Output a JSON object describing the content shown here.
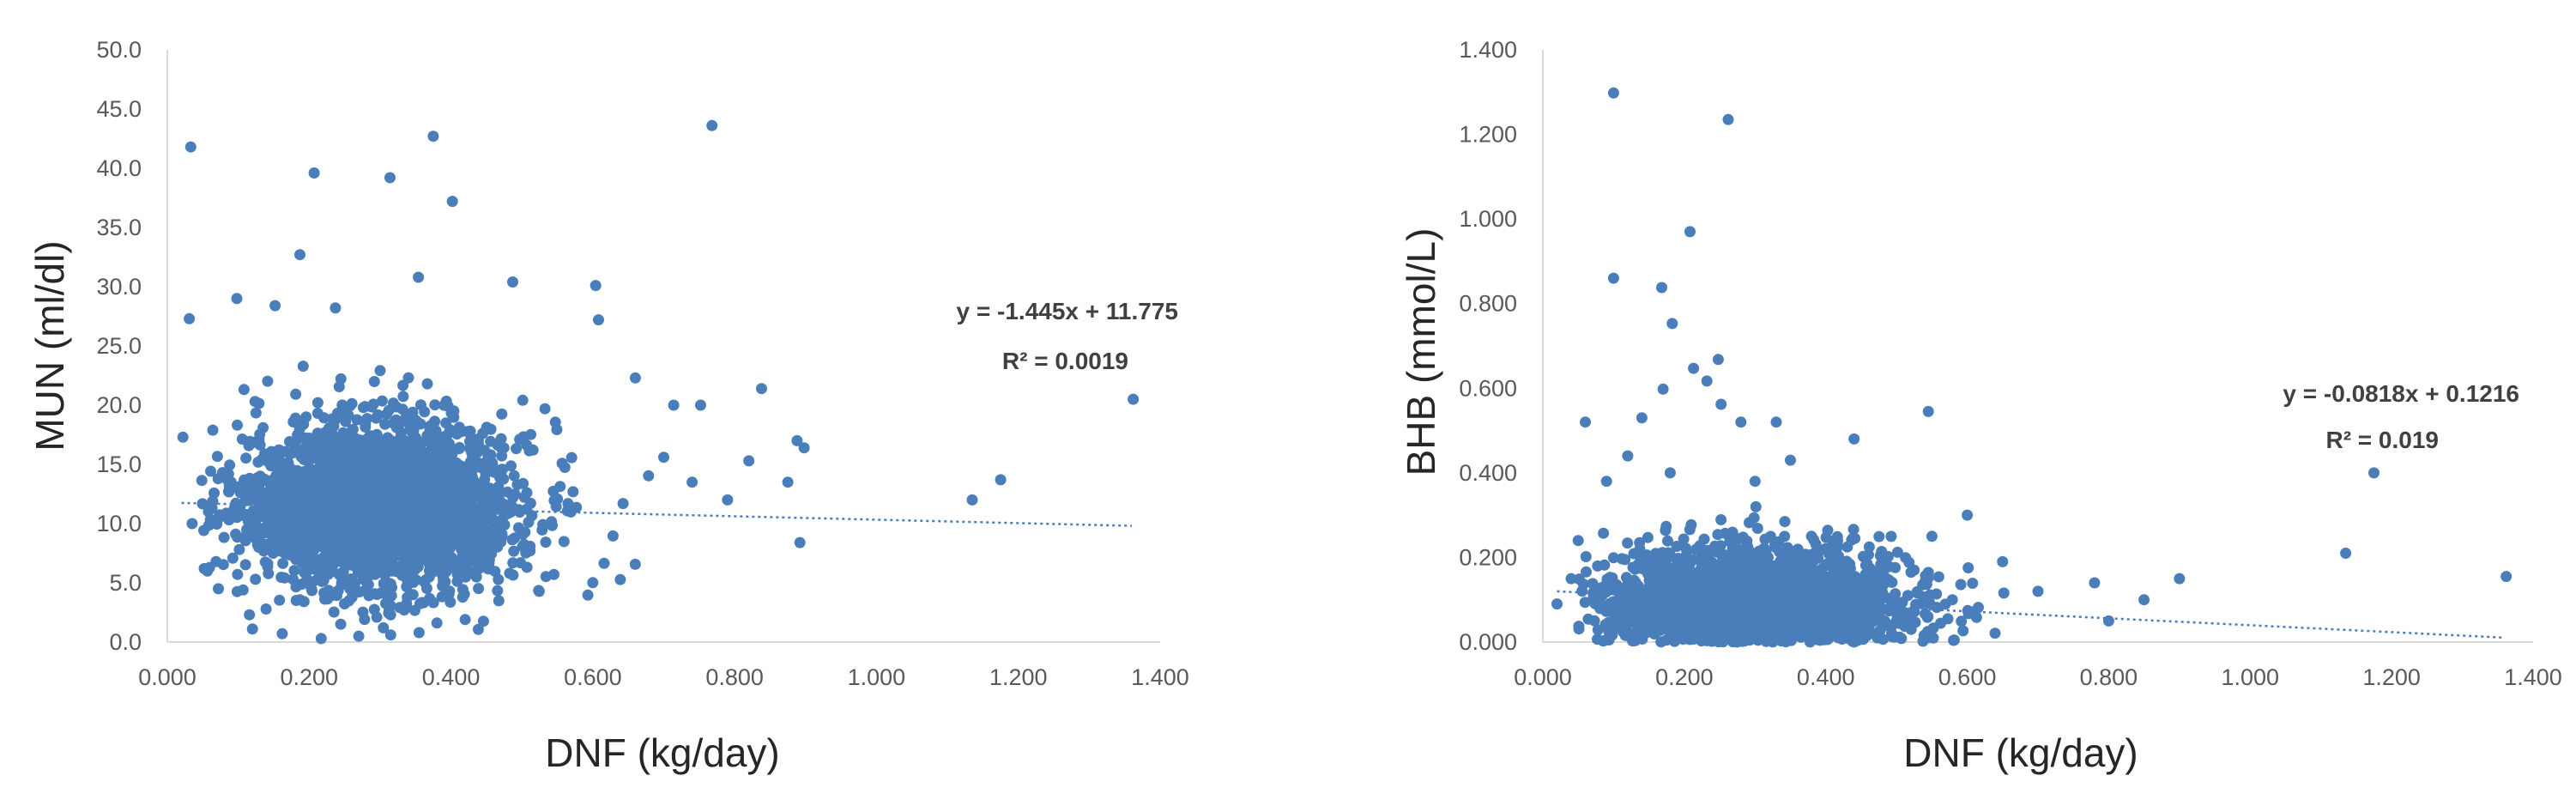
{
  "charts": [
    {
      "chart_data": {
        "type": "scatter",
        "title": "",
        "xlabel": "DNF (kg/day)",
        "ylabel": "MUN (ml/dl)",
        "xlim": [
          0.0,
          1.4
        ],
        "ylim": [
          0.0,
          50.0
        ],
        "x_ticks": [
          "0.000",
          "0.200",
          "0.400",
          "0.600",
          "0.800",
          "1.000",
          "1.200",
          "1.400"
        ],
        "y_ticks": [
          "0.0",
          "5.0",
          "10.0",
          "15.0",
          "20.0",
          "25.0",
          "30.0",
          "35.0",
          "40.0",
          "45.0",
          "50.0"
        ],
        "grid": false,
        "marker_color": "#4a7ebb",
        "trendline": {
          "type": "linear",
          "slope": -1.445,
          "intercept": 11.775,
          "x_range": [
            0.02,
            1.36
          ]
        },
        "annotations": [
          "y = -1.445x + 11.775",
          "R² = 0.0019"
        ],
        "points": [
          [
            0.033,
            41.8
          ],
          [
            0.207,
            39.6
          ],
          [
            0.314,
            39.2
          ],
          [
            0.375,
            42.7
          ],
          [
            0.402,
            37.2
          ],
          [
            0.768,
            43.6
          ],
          [
            0.187,
            32.7
          ],
          [
            0.354,
            30.8
          ],
          [
            0.487,
            30.4
          ],
          [
            0.604,
            30.1
          ],
          [
            0.031,
            27.3
          ],
          [
            0.098,
            29.0
          ],
          [
            0.152,
            28.4
          ],
          [
            0.237,
            28.2
          ],
          [
            0.608,
            27.2
          ],
          [
            0.714,
            20.0
          ],
          [
            0.752,
            20.0
          ],
          [
            0.838,
            21.4
          ],
          [
            0.888,
            17.0
          ],
          [
            0.898,
            16.4
          ],
          [
            0.875,
            13.5
          ],
          [
            0.892,
            8.4
          ],
          [
            1.135,
            12.0
          ],
          [
            1.175,
            13.7
          ],
          [
            1.362,
            20.5
          ],
          [
            0.022,
            17.3
          ],
          [
            0.035,
            10.0
          ],
          [
            0.052,
            6.2
          ],
          [
            0.072,
            4.5
          ],
          [
            0.12,
            1.1
          ],
          [
            0.162,
            0.7
          ],
          [
            0.217,
            0.3
          ],
          [
            0.27,
            0.5
          ],
          [
            0.315,
            0.6
          ],
          [
            0.355,
            0.8
          ],
          [
            0.42,
            1.9
          ],
          [
            0.66,
            22.3
          ],
          [
            0.7,
            15.6
          ],
          [
            0.74,
            13.5
          ],
          [
            0.79,
            12.0
          ],
          [
            0.82,
            15.3
          ]
        ],
        "point_cloud": {
          "x_center": 0.3,
          "x_spread": 0.1,
          "y_center": 11.5,
          "y_spread": 3.6,
          "x_range": [
            0.04,
            0.72
          ],
          "y_range": [
            0.8,
            24.0
          ]
        }
      }
    },
    {
      "chart_data": {
        "type": "scatter",
        "title": "",
        "xlabel": "DNF (kg/day)",
        "ylabel": "BHB (mmol/L)",
        "xlim": [
          0.0,
          1.4
        ],
        "ylim": [
          0.0,
          1.4
        ],
        "x_ticks": [
          "0.000",
          "0.200",
          "0.400",
          "0.600",
          "0.800",
          "1.000",
          "1.200",
          "1.400"
        ],
        "y_ticks": [
          "0.000",
          "0.200",
          "0.400",
          "0.600",
          "0.800",
          "1.000",
          "1.200",
          "1.400"
        ],
        "grid": false,
        "marker_color": "#4a7ebb",
        "trendline": {
          "type": "linear",
          "slope": -0.0818,
          "intercept": 0.1216,
          "x_range": [
            0.02,
            1.36
          ]
        },
        "annotations": [
          "y = -0.0818x + 0.1216",
          "R² = 0.019"
        ],
        "points": [
          [
            0.1,
            1.298
          ],
          [
            0.262,
            1.235
          ],
          [
            0.208,
            0.97
          ],
          [
            0.1,
            0.86
          ],
          [
            0.168,
            0.838
          ],
          [
            0.183,
            0.753
          ],
          [
            0.248,
            0.668
          ],
          [
            0.213,
            0.647
          ],
          [
            0.232,
            0.617
          ],
          [
            0.17,
            0.598
          ],
          [
            0.252,
            0.562
          ],
          [
            0.545,
            0.545
          ],
          [
            0.06,
            0.52
          ],
          [
            0.14,
            0.53
          ],
          [
            0.28,
            0.52
          ],
          [
            0.33,
            0.52
          ],
          [
            0.44,
            0.48
          ],
          [
            1.175,
            0.4
          ],
          [
            1.135,
            0.21
          ],
          [
            1.362,
            0.155
          ],
          [
            0.9,
            0.15
          ],
          [
            0.85,
            0.1
          ],
          [
            0.8,
            0.05
          ],
          [
            0.78,
            0.14
          ],
          [
            0.7,
            0.12
          ],
          [
            0.65,
            0.19
          ],
          [
            0.6,
            0.3
          ],
          [
            0.55,
            0.25
          ],
          [
            0.35,
            0.43
          ],
          [
            0.09,
            0.38
          ],
          [
            0.12,
            0.44
          ],
          [
            0.18,
            0.4
          ],
          [
            0.3,
            0.38
          ],
          [
            0.02,
            0.09
          ],
          [
            0.04,
            0.15
          ],
          [
            0.05,
            0.24
          ]
        ],
        "point_cloud": {
          "x_center": 0.3,
          "x_spread": 0.11,
          "y_center": 0.08,
          "y_spread": 0.07,
          "x_range": [
            0.05,
            0.75
          ],
          "y_range": [
            0.0,
            0.36
          ]
        }
      }
    }
  ]
}
